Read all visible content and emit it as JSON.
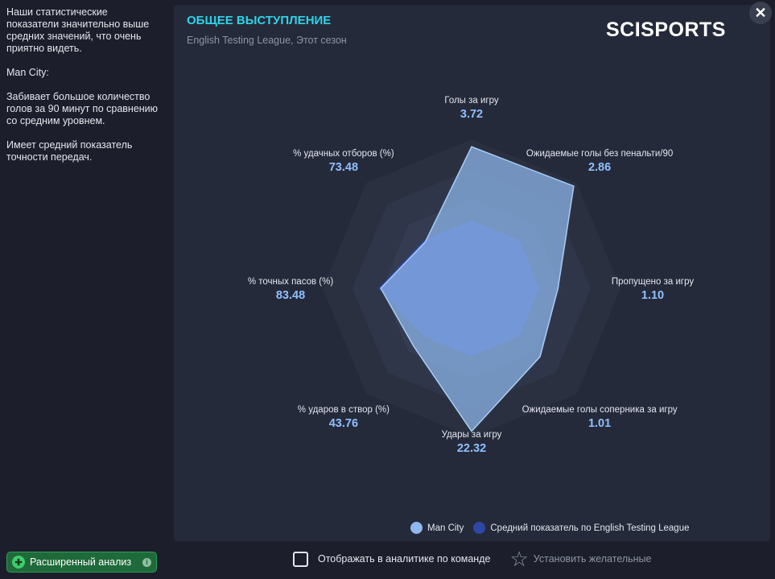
{
  "sidebar": {
    "paragraphs": [
      "Наши статистические показатели значительно выше средних значений, что очень приятно видеть.",
      "Man City:",
      "Забивает большое количество голов за 90 минут по сравнению со средним уровнем.",
      "Имеет средний показатель точности передач."
    ],
    "advanced_button": "Расширенный анализ"
  },
  "card": {
    "title": "ОБЩЕЕ ВЫСТУПЛЕНИЕ",
    "subtitle": "English Testing League, Этот сезон",
    "brand": "SCISPORTS",
    "close_symbol": "✕"
  },
  "colors": {
    "title": "#2fd3e6",
    "team": "#8fb8ee",
    "league_avg": "#2e46a6",
    "value_text": "#8fc0ff"
  },
  "radar": {
    "axes": [
      {
        "name": "Голы за игру",
        "value": "3.72",
        "team_level": 0.95,
        "avg_level": 0.45
      },
      {
        "name": "Ожидаемые голы без пенальти/90",
        "value": "2.86",
        "team_level": 0.97,
        "avg_level": 0.45
      },
      {
        "name": "Пропущено за игру",
        "value": "1.10",
        "team_level": 0.58,
        "avg_level": 0.45
      },
      {
        "name": "Ожидаемые голы соперника за игру",
        "value": "1.01",
        "team_level": 0.65,
        "avg_level": 0.45
      },
      {
        "name": "Удары за игру",
        "value": "22.32",
        "team_level": 0.96,
        "avg_level": 0.45
      },
      {
        "name": "% ударов в створ (%)",
        "value": "43.76",
        "team_level": 0.55,
        "avg_level": 0.45
      },
      {
        "name": "% точных пасов (%)",
        "value": "83.48",
        "team_level": 0.61,
        "avg_level": 0.62
      },
      {
        "name": "% удачных отборов (%)",
        "value": "73.48",
        "team_level": 0.44,
        "avg_level": 0.45
      }
    ]
  },
  "legend": {
    "team": "Man City",
    "average": "Средний показатель по English Testing League"
  },
  "bottom": {
    "show_in_analytics": "Отображать в аналитике по команде",
    "set_wish": "Установить желательные"
  }
}
